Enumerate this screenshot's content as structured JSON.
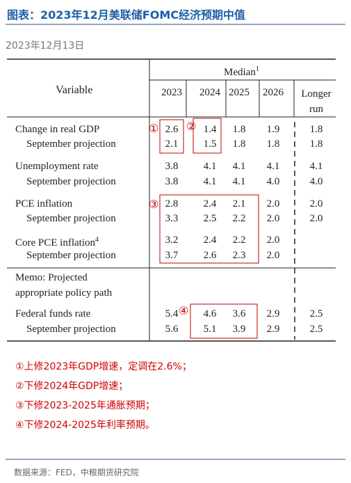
{
  "header": {
    "title": "图表：2023年12月美联储FOMC经济预期中值",
    "date": "2023年12月13日"
  },
  "table": {
    "variable": "Variable",
    "median": "Median",
    "median_note": "1",
    "columns": [
      "2023",
      "2024",
      "2025",
      "2026",
      "Longer run"
    ],
    "rows": [
      {
        "label": "Change in real GDP",
        "values": [
          "2.6",
          "1.4",
          "1.8",
          "1.9",
          "1.8"
        ],
        "sub_label": "September projection",
        "sub_values": [
          "2.1",
          "1.5",
          "1.8",
          "1.8",
          "1.8"
        ]
      },
      {
        "label": "Unemployment rate",
        "values": [
          "3.8",
          "4.1",
          "4.1",
          "4.1",
          "4.1"
        ],
        "sub_label": "September projection",
        "sub_values": [
          "3.8",
          "4.1",
          "4.1",
          "4.0",
          "4.0"
        ]
      },
      {
        "label": "PCE inflation",
        "values": [
          "2.8",
          "2.4",
          "2.1",
          "2.0",
          "2.0"
        ],
        "sub_label": "September projection",
        "sub_values": [
          "3.3",
          "2.5",
          "2.2",
          "2.0",
          "2.0"
        ]
      },
      {
        "label": "Core PCE inflation",
        "note": "4",
        "values": [
          "3.2",
          "2.4",
          "2.2",
          "2.0"
        ],
        "sub_label": "September projection",
        "sub_values": [
          "3.7",
          "2.6",
          "2.3",
          "2.0"
        ]
      },
      {
        "label": "Memo: Projected appropriate policy path"
      },
      {
        "label": "Federal funds rate",
        "values": [
          "5.4",
          "4.6",
          "3.6",
          "2.9",
          "2.5"
        ],
        "sub_label": "September projection",
        "sub_values": [
          "5.6",
          "5.1",
          "3.9",
          "2.9",
          "2.5"
        ]
      }
    ],
    "markers": [
      "①",
      "②",
      "③",
      "④"
    ]
  },
  "notes": [
    "①上修2023年GDP增速，定调在2.6%；",
    "②下修2024年GDP增速；",
    "③下修2023-2025年通胀预期；",
    "④下修2024-2025年利率预期。"
  ],
  "footer": {
    "source": "数据来源：FED，中粮期货研究院"
  }
}
